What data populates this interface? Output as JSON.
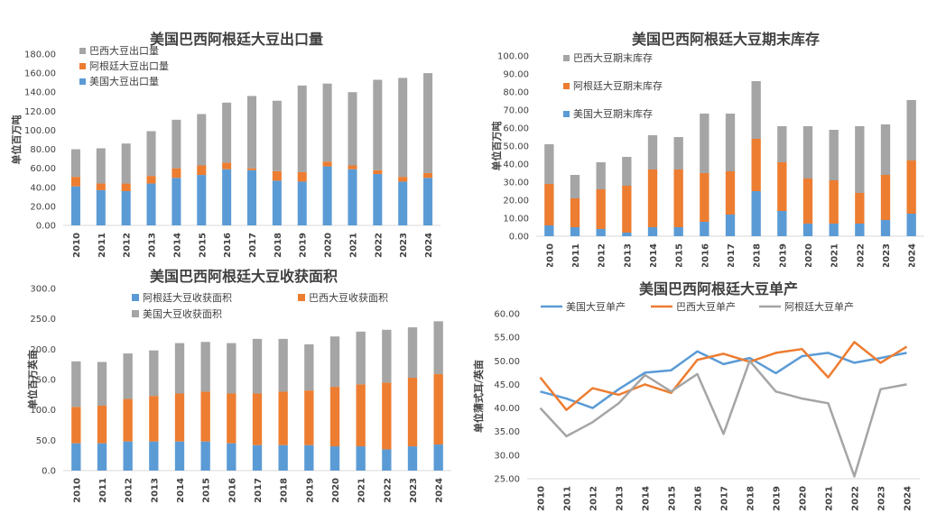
{
  "colors": {
    "gray": "#A5A5A5",
    "orange": "#ED7D31",
    "blue": "#5B9BD5",
    "axis": "#D9D9D9",
    "text": "#404040"
  },
  "chart_data": [
    {
      "type": "bar",
      "stacked": true,
      "title": "美国巴西阿根廷大豆出口量",
      "ylabel": "单位百万吨",
      "xlabel": "",
      "ylim": [
        0,
        180
      ],
      "yticks": [
        "0.00",
        "20.00",
        "40.00",
        "60.00",
        "80.00",
        "100.00",
        "120.00",
        "140.00",
        "160.00",
        "180.00"
      ],
      "categories": [
        "2010",
        "2011",
        "2012",
        "2013",
        "2014",
        "2015",
        "2016",
        "2017",
        "2018",
        "2019",
        "2020",
        "2021",
        "2022",
        "2023",
        "2024"
      ],
      "legend_position": "top-left",
      "legend_order": [
        2,
        1,
        0
      ],
      "series": [
        {
          "name": "美国大豆出口量",
          "color": "blue",
          "values": [
            41,
            37,
            36,
            44,
            50,
            53,
            59,
            58,
            47,
            46,
            62,
            59,
            54,
            46,
            50
          ]
        },
        {
          "name": "阿根廷大豆出口量",
          "color": "orange",
          "values": [
            10,
            7,
            8,
            8,
            10,
            10,
            7,
            2,
            10,
            10,
            5,
            4,
            4,
            5,
            5
          ]
        },
        {
          "name": "巴西大豆出口量",
          "color": "gray",
          "values": [
            29,
            37,
            42,
            47,
            51,
            54,
            63,
            76,
            74,
            91,
            82,
            77,
            95,
            104,
            105
          ]
        }
      ]
    },
    {
      "type": "bar",
      "stacked": true,
      "title": "美国巴西阿根廷大豆期末库存",
      "ylabel": "单位百万吨",
      "xlabel": "",
      "ylim": [
        0,
        100
      ],
      "yticks": [
        "0.00",
        "10.00",
        "20.00",
        "30.00",
        "40.00",
        "50.00",
        "60.00",
        "70.00",
        "80.00",
        "90.00",
        "100.00"
      ],
      "categories": [
        "2010",
        "2011",
        "2012",
        "2013",
        "2014",
        "2015",
        "2016",
        "2017",
        "2018",
        "2019",
        "2020",
        "2021",
        "2022",
        "2023",
        "2024"
      ],
      "legend_position": "top-left",
      "legend_order": [
        2,
        1,
        0
      ],
      "series": [
        {
          "name": "美国大豆期末库存",
          "color": "blue",
          "values": [
            6,
            5,
            4,
            2,
            5,
            5,
            8,
            12,
            25,
            14,
            7,
            7,
            7,
            9,
            12.5
          ]
        },
        {
          "name": "阿根廷大豆期末库存",
          "color": "orange",
          "values": [
            23,
            16,
            22,
            26,
            32,
            32,
            27,
            24,
            29,
            27,
            25,
            24,
            17,
            25,
            29.5
          ]
        },
        {
          "name": "巴西大豆期末库存",
          "color": "gray",
          "values": [
            22,
            13,
            15,
            16,
            19,
            18,
            33,
            32,
            32,
            20,
            29,
            28,
            37,
            28,
            33.5
          ]
        }
      ]
    },
    {
      "type": "bar",
      "stacked": true,
      "title": "美国巴西阿根廷大豆收获面积",
      "ylabel": "单位百万英亩",
      "xlabel": "",
      "ylim": [
        0,
        300
      ],
      "yticks": [
        "0.0",
        "50.0",
        "100.0",
        "150.0",
        "200.0",
        "250.0",
        "300.0"
      ],
      "categories": [
        "2010",
        "2011",
        "2012",
        "2013",
        "2014",
        "2015",
        "2016",
        "2017",
        "2018",
        "2019",
        "2020",
        "2021",
        "2022",
        "2023",
        "2024"
      ],
      "legend_position": "top",
      "legend_order": [
        0,
        1,
        2
      ],
      "series": [
        {
          "name": "阿根廷大豆收获面积",
          "color": "blue",
          "values": [
            45,
            45,
            48,
            48,
            48,
            48,
            45,
            42,
            42,
            42,
            40,
            40,
            35,
            40,
            43
          ]
        },
        {
          "name": "巴西大豆收获面积",
          "color": "orange",
          "values": [
            60,
            62,
            70,
            75,
            79,
            82,
            82,
            85,
            88,
            90,
            98,
            102,
            110,
            113,
            116
          ]
        },
        {
          "name": "美国大豆收获面积",
          "color": "gray",
          "values": [
            75,
            72,
            75,
            75,
            83,
            82,
            83,
            90,
            87,
            76,
            83,
            87,
            87,
            83,
            87
          ]
        }
      ]
    },
    {
      "type": "line",
      "title": "美国巴西阿根廷大豆单产",
      "ylabel": "单位蒲式耳/英亩",
      "xlabel": "",
      "ylim": [
        25,
        60
      ],
      "yticks": [
        "25.00",
        "30.00",
        "35.00",
        "40.00",
        "45.00",
        "50.00",
        "55.00",
        "60.00"
      ],
      "categories": [
        "2010",
        "2011",
        "2012",
        "2013",
        "2014",
        "2015",
        "2016",
        "2017",
        "2018",
        "2019",
        "2020",
        "2021",
        "2022",
        "2023",
        "2024"
      ],
      "legend_position": "top",
      "series": [
        {
          "name": "美国大豆单产",
          "color": "blue",
          "values": [
            43.5,
            42,
            40,
            44,
            47.5,
            48,
            52,
            49.3,
            50.6,
            47.4,
            51,
            51.7,
            49.6,
            50.6,
            51.7
          ]
        },
        {
          "name": "巴西大豆单产",
          "color": "orange",
          "values": [
            46.5,
            39.6,
            44.2,
            42.8,
            45,
            43.2,
            50.2,
            51.5,
            49.8,
            51.7,
            52.5,
            46.5,
            54,
            49.6,
            53
          ]
        },
        {
          "name": "阿根廷大豆单产",
          "color": "gray",
          "values": [
            40,
            34,
            37,
            41,
            47,
            43.5,
            47.2,
            34.5,
            50,
            43.5,
            42,
            41,
            25.5,
            44,
            45
          ]
        }
      ]
    }
  ]
}
